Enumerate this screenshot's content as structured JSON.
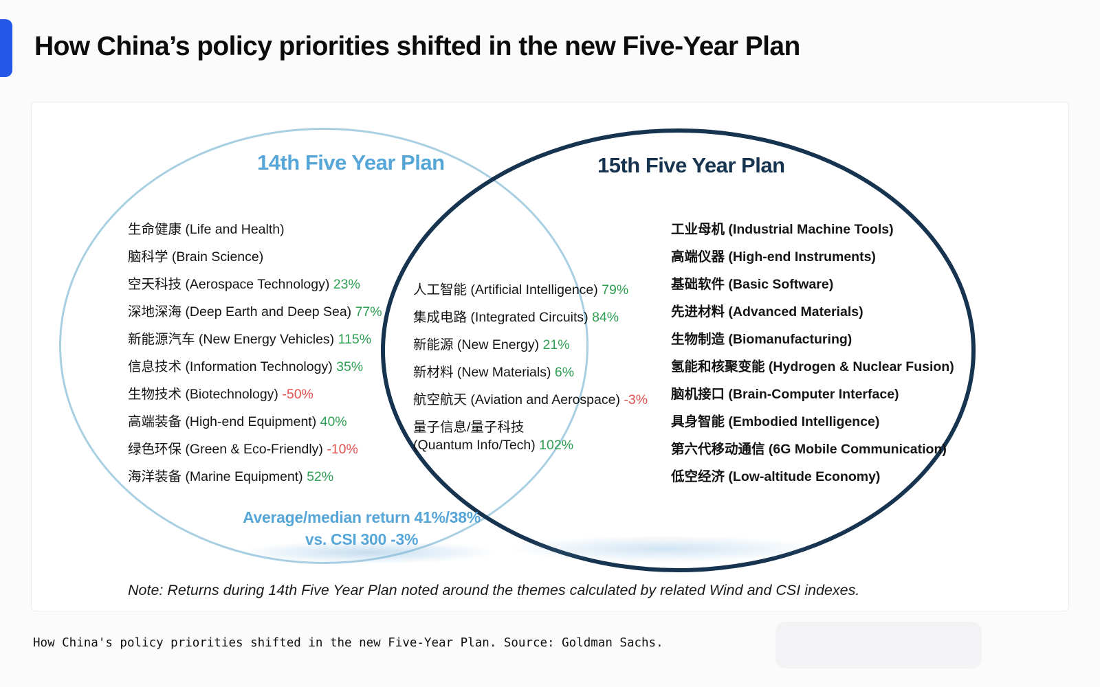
{
  "page": {
    "title": "How China’s policy priorities shifted in the new Five-Year Plan",
    "caption": "How China's policy priorities shifted in the new Five-Year Plan. Source: Goldman Sachs.",
    "accent_color": "#2457e6"
  },
  "venn": {
    "positive_color": "#2e9e52",
    "negative_color": "#e0504f",
    "left": {
      "title": "14th Five Year Plan",
      "title_color": "#57a6d8",
      "border_color": "#a9cfe2",
      "items": [
        {
          "zh": "生命健康",
          "en": "(Life and Health)",
          "pct": ""
        },
        {
          "zh": "脑科学",
          "en": "(Brain Science)",
          "pct": ""
        },
        {
          "zh": "空天科技",
          "en": "(Aerospace Technology)",
          "pct": "23%"
        },
        {
          "zh": "深地深海",
          "en": "(Deep Earth and Deep Sea)",
          "pct": "77%"
        },
        {
          "zh": "新能源汽车",
          "en": "(New Energy Vehicles)",
          "pct": "115%"
        },
        {
          "zh": "信息技术",
          "en": "(Information Technology)",
          "pct": "35%"
        },
        {
          "zh": "生物技术",
          "en": "(Biotechnology)",
          "pct": "-50%"
        },
        {
          "zh": "高端装备",
          "en": "(High-end Equipment)",
          "pct": "40%"
        },
        {
          "zh": "绿色环保",
          "en": "(Green & Eco-Friendly)",
          "pct": "-10%"
        },
        {
          "zh": "海洋装备",
          "en": "(Marine Equipment)",
          "pct": "52%"
        }
      ],
      "summary_line1": "Average/median return 41%/38%",
      "summary_line2": "vs. CSI 300 -3%"
    },
    "intersection": {
      "items": [
        {
          "zh": "人工智能",
          "en": "(Artificial Intelligence)",
          "pct": "79%"
        },
        {
          "zh": "集成电路",
          "en": "(Integrated Circuits)",
          "pct": "84%"
        },
        {
          "zh": "新能源",
          "en": "(New Energy)",
          "pct": "21%"
        },
        {
          "zh": "新材料",
          "en": "(New Materials)",
          "pct": "6%"
        },
        {
          "zh": "航空航天",
          "en": "(Aviation and Aerospace)",
          "pct": "-3%"
        },
        {
          "zh": "量子信息/量子科技",
          "en": "(Quantum Info/Tech)",
          "pct": "102%",
          "break": true
        }
      ]
    },
    "right": {
      "title": "15th Five Year Plan",
      "title_color": "#16334f",
      "border_color": "#16334f",
      "items": [
        {
          "zh": "工业母机",
          "en": "(Industrial Machine Tools)",
          "pct": ""
        },
        {
          "zh": "高端仪器",
          "en": "(High-end Instruments)",
          "pct": ""
        },
        {
          "zh": "基础软件",
          "en": "(Basic Software)",
          "pct": ""
        },
        {
          "zh": "先进材料",
          "en": "(Advanced Materials)",
          "pct": ""
        },
        {
          "zh": "生物制造",
          "en": "(Biomanufacturing)",
          "pct": ""
        },
        {
          "zh": "氢能和核聚变能",
          "en": "(Hydrogen & Nuclear Fusion)",
          "pct": ""
        },
        {
          "zh": "脑机接口",
          "en": "(Brain-Computer Interface)",
          "pct": ""
        },
        {
          "zh": "具身智能",
          "en": "(Embodied Intelligence)",
          "pct": ""
        },
        {
          "zh": "第六代移动通信",
          "en": "(6G Mobile Communication)",
          "pct": ""
        },
        {
          "zh": "低空经济",
          "en": "(Low-altitude Economy)",
          "pct": ""
        }
      ]
    },
    "note": "Note: Returns during 14th Five Year Plan noted around the themes calculated by related Wind and CSI indexes."
  }
}
